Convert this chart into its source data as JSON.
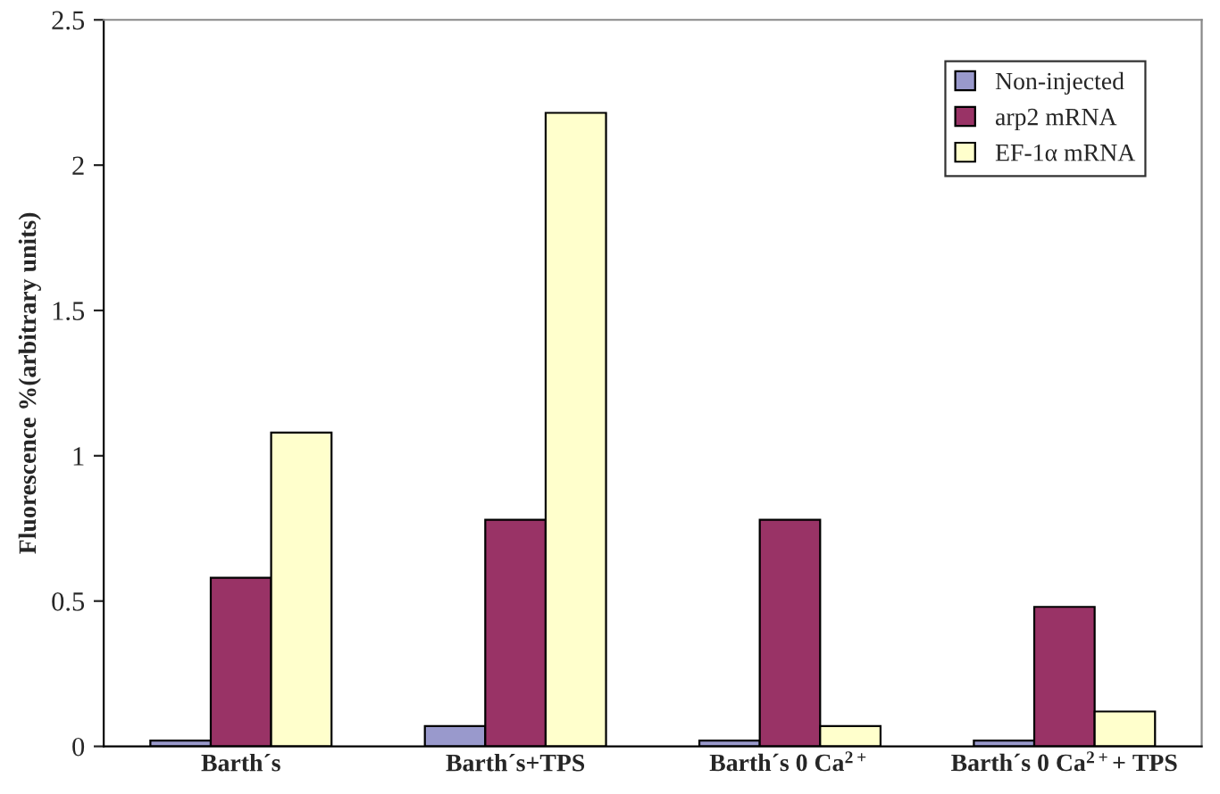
{
  "chart_data": {
    "type": "bar",
    "ylabel": "Fluorescence %(arbitrary units)",
    "categories": [
      "Barth´s",
      "Barth´s+TPS",
      "Barth´s 0 Ca$^{2+}$",
      "Barth´s 0 Ca$^{2+}$+ TPS"
    ],
    "series": [
      {
        "name": "Non-injected",
        "color": "#9999cc",
        "values": [
          0.02,
          0.07,
          0.02,
          0.02
        ]
      },
      {
        "name": "arp2 mRNA",
        "color": "#993366",
        "values": [
          0.58,
          0.78,
          0.78,
          0.48
        ]
      },
      {
        "name": "EF-1α mRNA",
        "color": "#ffffcc",
        "values": [
          1.08,
          2.18,
          0.07,
          0.12
        ]
      }
    ],
    "ylim": [
      0,
      2.5
    ],
    "yticks": [
      0,
      0.5,
      1,
      1.5,
      2,
      2.5
    ],
    "grid": false,
    "legend": "top right"
  }
}
